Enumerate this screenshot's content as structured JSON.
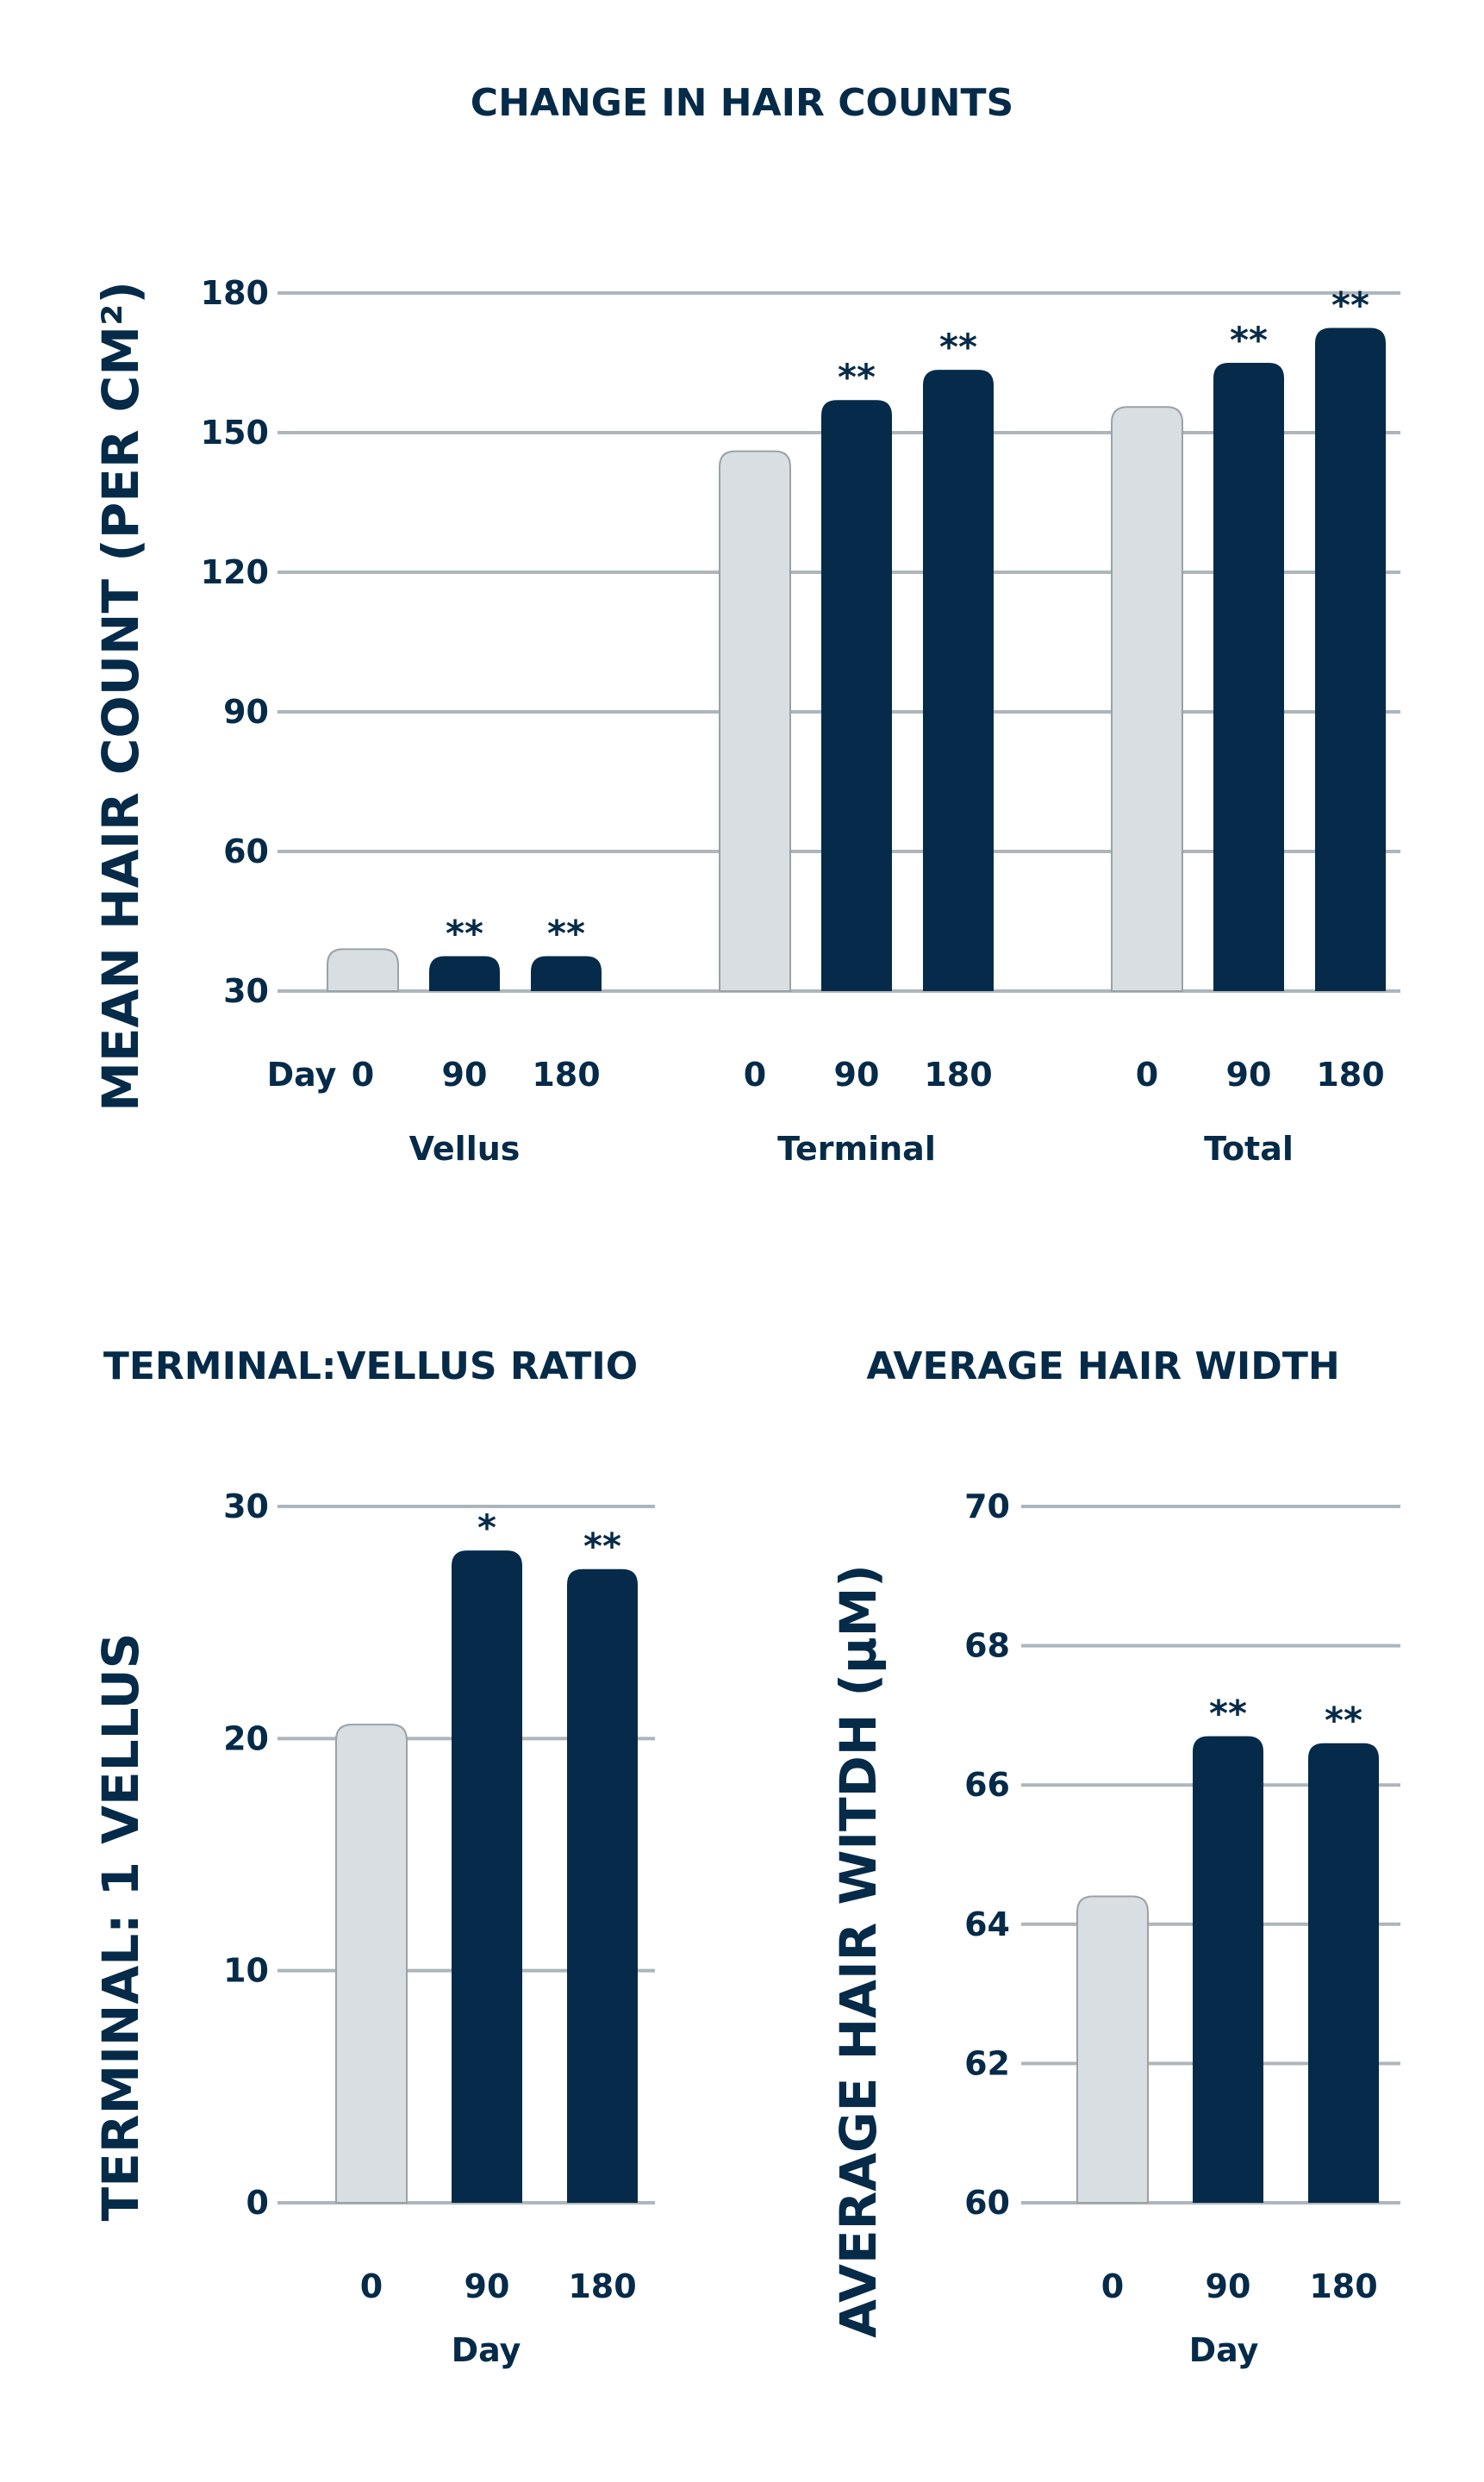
{
  "colors": {
    "baseline": "#d8dee2",
    "treated": "#052a4a",
    "grid": "#aeb6bb",
    "text": "#062b49",
    "bar_outline": "#9aa2a8"
  },
  "chart_data": [
    {
      "type": "bar",
      "title": "CHANGE IN HAIR COUNTS",
      "ylabel": "MEAN HAIR COUNT (PER CM²)",
      "xlabel_prefix": "Day",
      "ylim": [
        30,
        180
      ],
      "yticks": [
        "180",
        "150",
        "120",
        "90",
        "60",
        "30"
      ],
      "groups": [
        {
          "name": "Vellus",
          "categories": [
            "0",
            "90",
            "180"
          ],
          "values": [
            39,
            37.5,
            37.5
          ],
          "significance": [
            "",
            "**",
            "**"
          ]
        },
        {
          "name": "Terminal",
          "categories": [
            "0",
            "90",
            "180"
          ],
          "values": [
            146,
            157,
            163.5
          ],
          "significance": [
            "",
            "**",
            "**"
          ]
        },
        {
          "name": "Total",
          "categories": [
            "0",
            "90",
            "180"
          ],
          "values": [
            155.5,
            165,
            172.5
          ],
          "significance": [
            "",
            "**",
            "**"
          ]
        }
      ],
      "grid": true
    },
    {
      "type": "bar",
      "title": "TERMINAL:VELLUS RATIO",
      "ylabel": "TERMINAL: 1 VELLUS",
      "xlabel": "Day",
      "ylim": [
        0,
        30
      ],
      "yticks": [
        "30",
        "20",
        "10",
        "0"
      ],
      "categories": [
        "0",
        "90",
        "180"
      ],
      "values": [
        20.6,
        28.1,
        27.3
      ],
      "significance": [
        "",
        "*",
        "**"
      ],
      "grid": true
    },
    {
      "type": "bar",
      "title": "AVERAGE HAIR WIDTH",
      "ylabel": "AVERAGE HAIR WITDH (µM)",
      "xlabel": "Day",
      "ylim": [
        60,
        70
      ],
      "yticks": [
        "70",
        "68",
        "66",
        "64",
        "62",
        "60"
      ],
      "categories": [
        "0",
        "90",
        "180"
      ],
      "values": [
        64.4,
        66.7,
        66.6
      ],
      "significance": [
        "",
        "**",
        "**"
      ],
      "grid": true
    }
  ]
}
